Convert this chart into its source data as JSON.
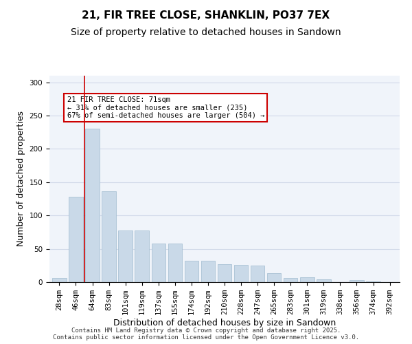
{
  "title_line1": "21, FIR TREE CLOSE, SHANKLIN, PO37 7EX",
  "title_line2": "Size of property relative to detached houses in Sandown",
  "xlabel": "Distribution of detached houses by size in Sandown",
  "ylabel": "Number of detached properties",
  "categories": [
    "28sqm",
    "46sqm",
    "64sqm",
    "83sqm",
    "101sqm",
    "119sqm",
    "137sqm",
    "155sqm",
    "174sqm",
    "192sqm",
    "210sqm",
    "228sqm",
    "247sqm",
    "265sqm",
    "283sqm",
    "301sqm",
    "319sqm",
    "338sqm",
    "356sqm",
    "374sqm",
    "392sqm"
  ],
  "values": [
    6,
    128,
    230,
    136,
    78,
    78,
    58,
    58,
    32,
    32,
    27,
    26,
    25,
    13,
    6,
    7,
    4,
    0,
    3,
    1,
    0
  ],
  "bar_color": "#c9d9e8",
  "bar_edgecolor": "#a0bcd0",
  "grid_color": "#d0d8e8",
  "background_color": "#f0f4fa",
  "annotation_box_text": "21 FIR TREE CLOSE: 71sqm\n← 31% of detached houses are smaller (235)\n67% of semi-detached houses are larger (504) →",
  "annotation_box_color": "#cc0000",
  "vline_x_index": 1.5,
  "ylim": [
    0,
    310
  ],
  "yticks": [
    0,
    50,
    100,
    150,
    200,
    250,
    300
  ],
  "footnote": "Contains HM Land Registry data © Crown copyright and database right 2025.\nContains public sector information licensed under the Open Government Licence v3.0.",
  "title_fontsize": 11,
  "subtitle_fontsize": 10,
  "tick_fontsize": 7.5,
  "label_fontsize": 9
}
